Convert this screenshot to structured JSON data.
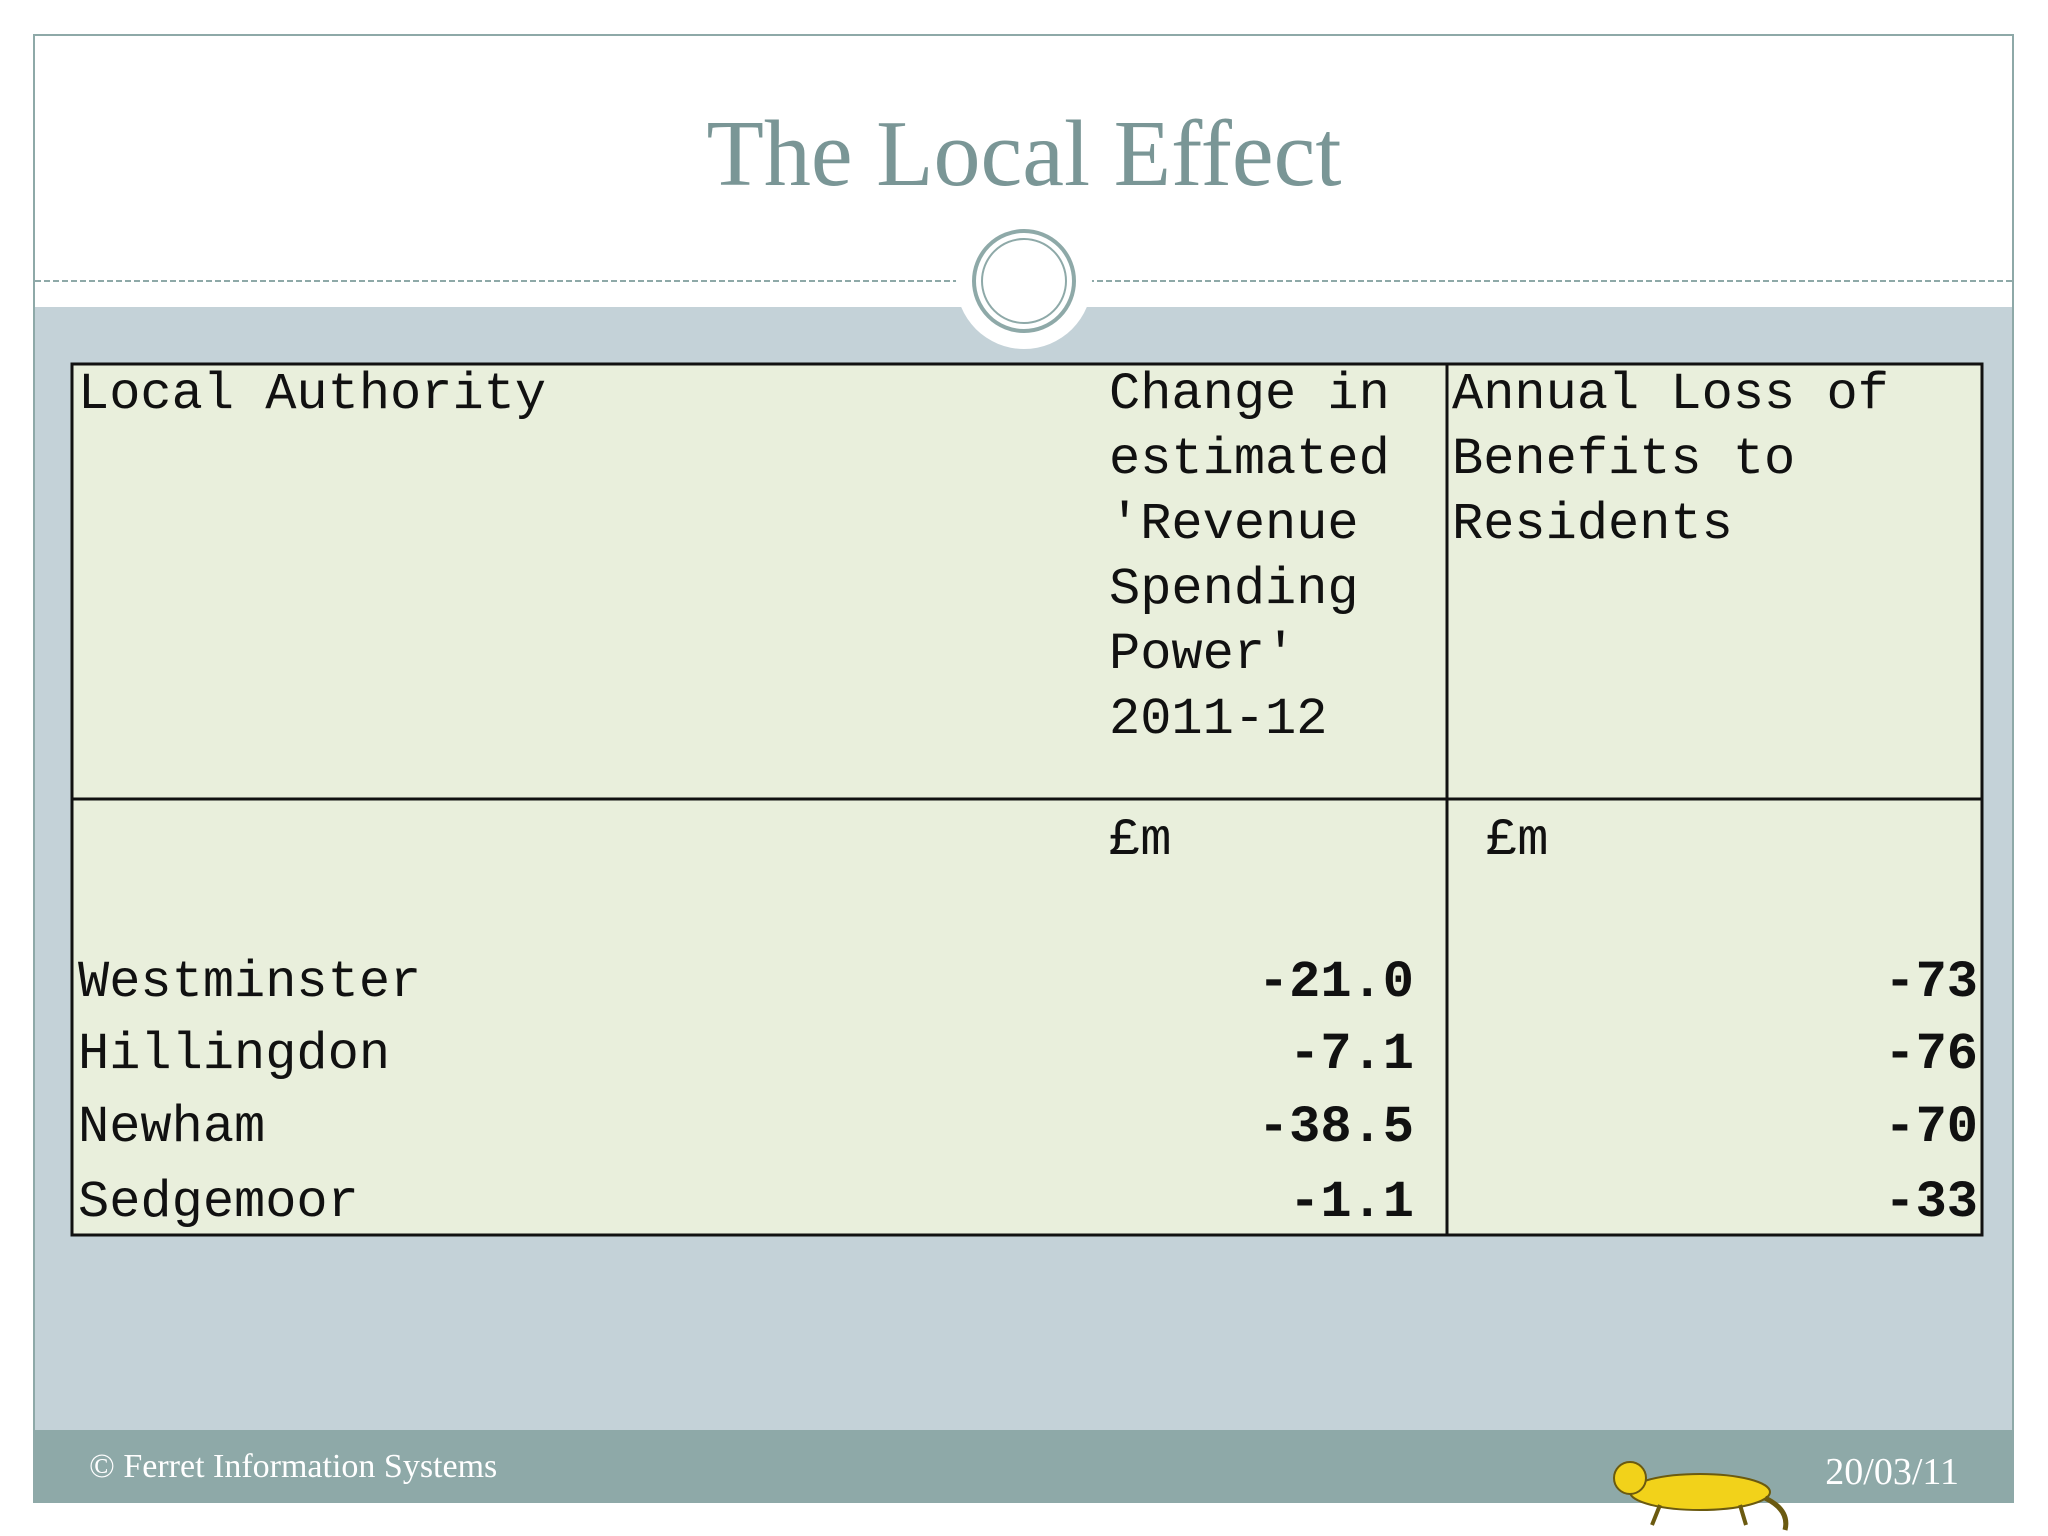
{
  "title": "The Local Effect",
  "table": {
    "header": [
      "Local Authority",
      "Change in estimated 'Revenue Spending Power' 2011-12",
      "Annual Loss of Benefits to Residents"
    ],
    "units": [
      "£m",
      "£m"
    ],
    "rows": [
      [
        "Westminster",
        "-21.0",
        "-73"
      ],
      [
        "Hillingdon",
        "-7.1",
        "-76"
      ],
      [
        "Newham",
        "-38.5",
        "-70"
      ],
      [
        "Sedgemoor",
        "-1.1",
        "-33"
      ]
    ]
  },
  "footer": {
    "copyright": "© Ferret Information Systems",
    "date": "20/03/11"
  }
}
